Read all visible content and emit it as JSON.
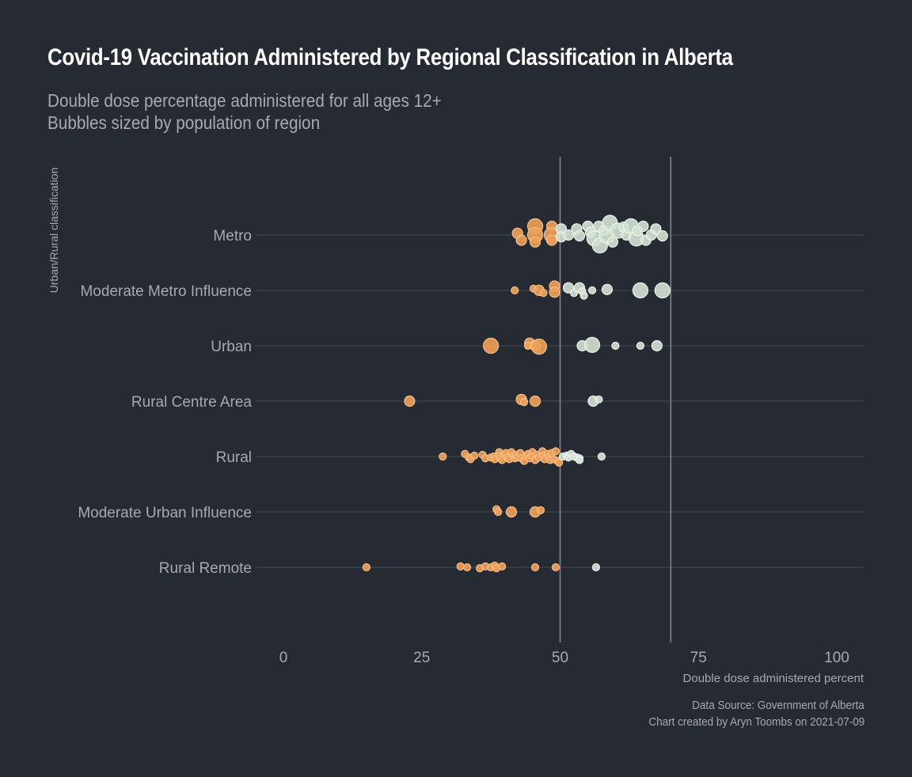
{
  "chart_data": {
    "type": "scatter",
    "title": "Covid-19 Vaccination Administered by Regional Classification in Alberta",
    "subtitle": [
      "Double dose percentage administered for all ages 12+",
      "Bubbles sized by population of region"
    ],
    "xlabel": "Double dose administered percent",
    "ylabel": "Urban/Rural classification",
    "xlim": [
      0,
      100
    ],
    "x_ticks": [
      0,
      25,
      50,
      75,
      100
    ],
    "x_tick_labels": [
      "0",
      "25",
      "50",
      "75",
      "100"
    ],
    "reference_lines": [
      50,
      70
    ],
    "categories": [
      "Metro",
      "Moderate Metro Influence",
      "Urban",
      "Rural Centre Area",
      "Rural",
      "Moderate Urban Influence",
      "Rural Remote"
    ],
    "colors": {
      "below_50": "#f0a058",
      "above_50": "#d3e2d1",
      "background": "#262a33",
      "grid": "#454952"
    },
    "points": {
      "Metro": [
        [
          42.3,
          0.1,
          2
        ],
        [
          43.0,
          -0.3,
          2
        ],
        [
          45.5,
          0.5,
          3
        ],
        [
          45.5,
          0.0,
          3
        ],
        [
          45.5,
          -0.4,
          2
        ],
        [
          48.5,
          0.5,
          2
        ],
        [
          48.5,
          0.0,
          3
        ],
        [
          48.5,
          -0.3,
          2
        ],
        [
          50.2,
          0.35,
          2
        ],
        [
          50.2,
          -0.1,
          2
        ],
        [
          51.5,
          0.0,
          2
        ],
        [
          53.0,
          0.35,
          2
        ],
        [
          53.5,
          -0.05,
          2
        ],
        [
          55.0,
          0.5,
          2
        ],
        [
          55.5,
          0.15,
          2
        ],
        [
          56.2,
          -0.2,
          3
        ],
        [
          57.0,
          0.5,
          2
        ],
        [
          57.2,
          -0.6,
          3
        ],
        [
          58.0,
          0.25,
          2
        ],
        [
          58.5,
          -0.05,
          3
        ],
        [
          59.0,
          0.7,
          3
        ],
        [
          59.5,
          -0.4,
          2
        ],
        [
          60.5,
          0.25,
          3
        ],
        [
          61.5,
          0.45,
          2
        ],
        [
          62.0,
          0.0,
          2
        ],
        [
          62.8,
          0.5,
          3
        ],
        [
          63.8,
          -0.2,
          3
        ],
        [
          64.0,
          0.25,
          2
        ],
        [
          65.0,
          0.5,
          2
        ],
        [
          65.5,
          -0.3,
          2
        ],
        [
          66.5,
          0.0,
          2
        ],
        [
          67.3,
          0.35,
          2
        ],
        [
          68.5,
          -0.05,
          2
        ]
      ],
      "Moderate Metro Influence": [
        [
          41.8,
          0.0,
          1
        ],
        [
          45.2,
          0.1,
          1
        ],
        [
          46.2,
          0.0,
          2
        ],
        [
          47.0,
          -0.15,
          1
        ],
        [
          49.0,
          0.25,
          2
        ],
        [
          49.0,
          -0.1,
          2
        ],
        [
          51.5,
          0.15,
          2
        ],
        [
          52.5,
          -0.15,
          1
        ],
        [
          53.5,
          0.15,
          2
        ],
        [
          54.0,
          -0.05,
          1
        ],
        [
          54.3,
          -0.3,
          1
        ],
        [
          55.8,
          0.0,
          1
        ],
        [
          58.5,
          0.05,
          2
        ],
        [
          64.5,
          0.0,
          3
        ],
        [
          68.5,
          0.0,
          3
        ]
      ],
      "Urban": [
        [
          37.5,
          0.0,
          3
        ],
        [
          44.5,
          0.15,
          2
        ],
        [
          44.2,
          0.0,
          1
        ],
        [
          45.5,
          0.0,
          2
        ],
        [
          46.2,
          -0.05,
          3
        ],
        [
          54.0,
          0.0,
          2
        ],
        [
          55.8,
          0.05,
          3
        ],
        [
          60.0,
          0.0,
          1
        ],
        [
          64.5,
          0.0,
          1
        ],
        [
          67.5,
          0.0,
          2
        ]
      ],
      "Rural Centre Area": [
        [
          22.8,
          0.0,
          2
        ],
        [
          43.0,
          0.1,
          2
        ],
        [
          43.5,
          -0.05,
          1
        ],
        [
          45.5,
          0.0,
          2
        ],
        [
          56.0,
          0.0,
          2
        ],
        [
          57.0,
          0.1,
          1
        ]
      ],
      "Rural": [
        [
          28.8,
          0.0,
          1
        ],
        [
          32.8,
          0.15,
          1
        ],
        [
          33.5,
          -0.05,
          1
        ],
        [
          33.8,
          -0.15,
          1
        ],
        [
          34.5,
          0.05,
          1
        ],
        [
          36.0,
          0.1,
          1
        ],
        [
          36.5,
          -0.1,
          1
        ],
        [
          37.5,
          -0.05,
          1
        ],
        [
          38.0,
          0.0,
          1
        ],
        [
          38.2,
          -0.15,
          1
        ],
        [
          39.0,
          0.25,
          1
        ],
        [
          39.0,
          0.05,
          1
        ],
        [
          39.2,
          -0.1,
          1
        ],
        [
          39.5,
          -0.2,
          1
        ],
        [
          40.0,
          0.1,
          1
        ],
        [
          40.2,
          0.2,
          1
        ],
        [
          40.5,
          -0.05,
          1
        ],
        [
          40.8,
          -0.15,
          1
        ],
        [
          41.2,
          0.25,
          1
        ],
        [
          41.5,
          0.05,
          1
        ],
        [
          41.8,
          -0.1,
          1
        ],
        [
          42.0,
          0.1,
          1
        ],
        [
          42.3,
          -0.05,
          1
        ],
        [
          42.8,
          0.2,
          1
        ],
        [
          43.0,
          -0.1,
          1
        ],
        [
          43.5,
          -0.25,
          1
        ],
        [
          43.8,
          0.05,
          1
        ],
        [
          44.2,
          0.15,
          1
        ],
        [
          44.5,
          -0.1,
          1
        ],
        [
          45.0,
          0.25,
          1
        ],
        [
          45.0,
          0.0,
          1
        ],
        [
          45.5,
          -0.2,
          1
        ],
        [
          45.8,
          0.1,
          1
        ],
        [
          46.2,
          -0.05,
          1
        ],
        [
          46.8,
          0.3,
          1
        ],
        [
          47.0,
          0.05,
          1
        ],
        [
          47.2,
          -0.15,
          1
        ],
        [
          47.8,
          0.15,
          1
        ],
        [
          48.0,
          -0.05,
          1
        ],
        [
          48.2,
          -0.2,
          1
        ],
        [
          48.5,
          0.2,
          1
        ],
        [
          48.8,
          -0.15,
          1
        ],
        [
          49.2,
          0.3,
          1
        ],
        [
          49.5,
          -0.25,
          1
        ],
        [
          49.8,
          -0.35,
          1
        ],
        [
          50.5,
          0.0,
          1
        ],
        [
          51.2,
          0.05,
          1
        ],
        [
          51.5,
          -0.05,
          1
        ],
        [
          52.0,
          0.15,
          1
        ],
        [
          52.5,
          0.0,
          1
        ],
        [
          53.0,
          -0.05,
          1
        ],
        [
          53.5,
          -0.1,
          1
        ],
        [
          53.5,
          -0.2,
          1
        ],
        [
          57.5,
          0.0,
          1
        ]
      ],
      "Moderate Urban Influence": [
        [
          38.5,
          0.15,
          1
        ],
        [
          38.8,
          0.0,
          1
        ],
        [
          41.2,
          0.0,
          2
        ],
        [
          45.5,
          0.0,
          2
        ],
        [
          46.5,
          0.1,
          1
        ]
      ],
      "Rural Remote": [
        [
          15.0,
          0.0,
          1
        ],
        [
          32.0,
          0.05,
          1
        ],
        [
          33.2,
          0.0,
          1
        ],
        [
          35.5,
          -0.05,
          1
        ],
        [
          36.5,
          0.05,
          1
        ],
        [
          37.5,
          0.0,
          1
        ],
        [
          38.2,
          0.1,
          1
        ],
        [
          38.5,
          -0.05,
          1
        ],
        [
          39.5,
          0.05,
          1
        ],
        [
          45.5,
          0.0,
          1
        ],
        [
          49.2,
          0.0,
          1
        ],
        [
          56.5,
          0.0,
          1
        ]
      ]
    }
  },
  "captions": {
    "source": "Data Source: Government of Alberta",
    "credit": "Chart created by Aryn Toombs on 2021-07-09"
  }
}
